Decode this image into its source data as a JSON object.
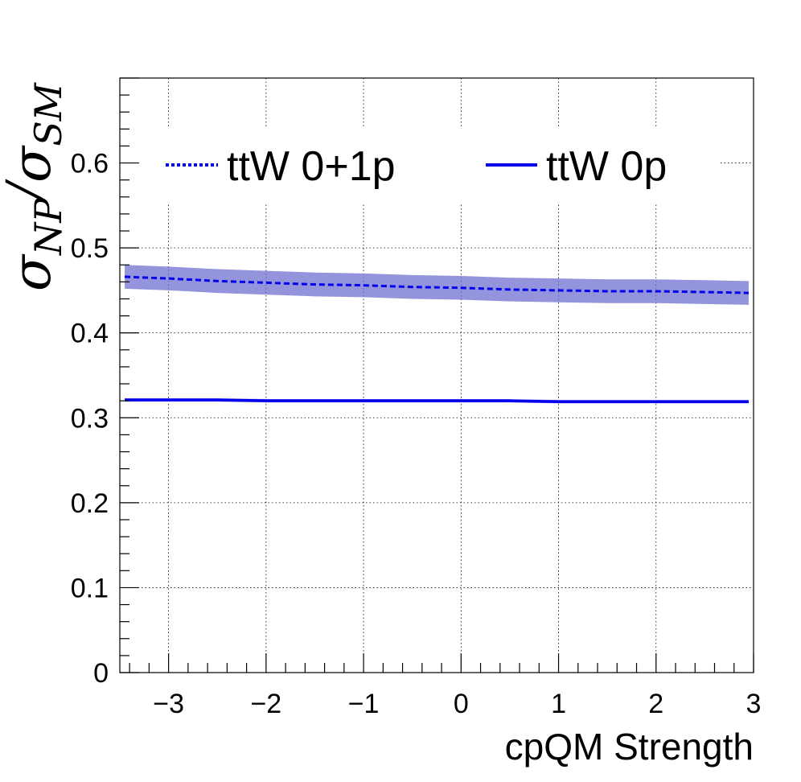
{
  "chart_data": {
    "type": "line",
    "xlabel": "cpQM Strength",
    "ylabel": {
      "sym": "σ",
      "num_sub": "NP",
      "slash": "/",
      "den_sub": "SM"
    },
    "xlim": [
      -3.5,
      3.0
    ],
    "ylim": [
      0,
      0.7
    ],
    "xticks": [
      -3,
      -2,
      -1,
      0,
      1,
      2,
      3
    ],
    "xtick_labels": [
      "−3",
      "−2",
      "−1",
      "0",
      "1",
      "2",
      "3"
    ],
    "yticks": [
      0,
      0.1,
      0.2,
      0.3,
      0.4,
      0.5,
      0.6
    ],
    "ytick_labels": [
      "0",
      "0.1",
      "0.2",
      "0.3",
      "0.4",
      "0.5",
      "0.6"
    ],
    "grid": true,
    "legend_position": "top",
    "series": [
      {
        "name": "ttW 0+1p",
        "style": "dashed",
        "color": "#0000ee",
        "band_color": "#7070d0",
        "x": [
          -3.45,
          -3.0,
          -2.5,
          -2.0,
          -1.5,
          -1.0,
          -0.5,
          0.0,
          0.5,
          1.0,
          1.5,
          2.0,
          2.5,
          2.95
        ],
        "y": [
          0.466,
          0.464,
          0.461,
          0.459,
          0.457,
          0.456,
          0.454,
          0.453,
          0.451,
          0.45,
          0.449,
          0.449,
          0.448,
          0.447
        ],
        "band": 0.014
      },
      {
        "name": "ttW 0p",
        "style": "solid",
        "color": "#0000ee",
        "band_color": "#7070d0",
        "x": [
          -3.45,
          -3.0,
          -2.5,
          -2.0,
          -1.5,
          -1.0,
          -0.5,
          0.0,
          0.5,
          1.0,
          1.5,
          2.0,
          2.5,
          2.95
        ],
        "y": [
          0.321,
          0.321,
          0.321,
          0.32,
          0.32,
          0.32,
          0.32,
          0.32,
          0.32,
          0.319,
          0.319,
          0.319,
          0.319,
          0.319
        ],
        "band": 0.002
      }
    ]
  }
}
